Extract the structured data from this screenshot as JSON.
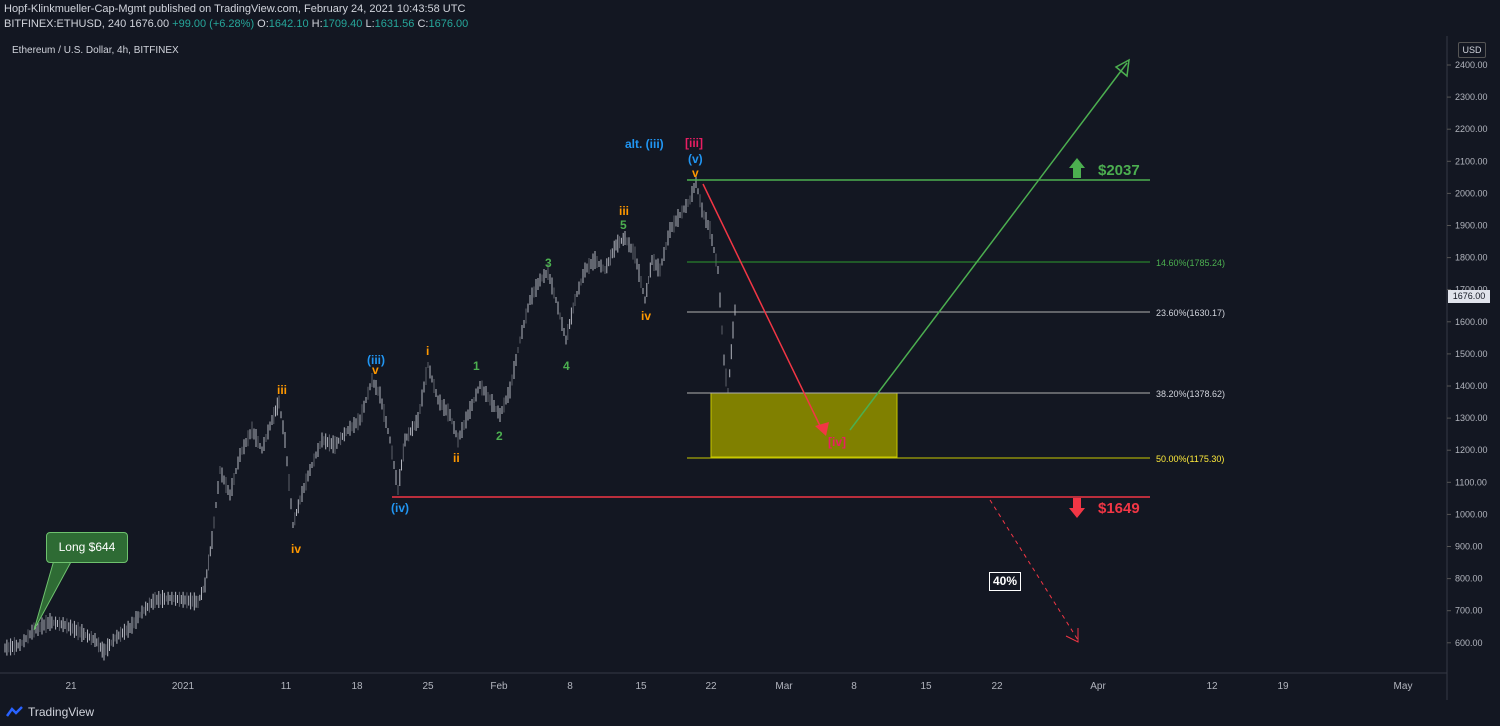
{
  "header": {
    "line1": "Hopf-Klinkmueller-Cap-Mgmt published on TradingView.com, February 24, 2021 10:43:58 UTC",
    "symbol": "BITFINEX:ETHUSD, 240",
    "last": "1676.00",
    "change": "+99.00 (+6.28%)",
    "o_label": "O:",
    "o": "1642.10",
    "h_label": "H:",
    "h": "1709.40",
    "l_label": "L:",
    "l": "1631.56",
    "c_label": "C:",
    "c": "1676.00"
  },
  "chart_title": "Ethereum / U.S. Dollar, 4h, BITFINEX",
  "currency_button": "USD",
  "current_price_tag": "1676.00",
  "price_axis": [
    "2400.00",
    "2300.00",
    "2200.00",
    "2100.00",
    "2000.00",
    "1900.00",
    "1800.00",
    "1700.00",
    "1600.00",
    "1500.00",
    "1400.00",
    "1300.00",
    "1200.00",
    "1100.00",
    "1000.00",
    "900.00",
    "800.00",
    "700.00",
    "600.00"
  ],
  "time_axis": [
    "21",
    "2021",
    "11",
    "18",
    "25",
    "Feb",
    "8",
    "15",
    "22",
    "Mar",
    "8",
    "15",
    "22",
    "Apr",
    "12",
    "19",
    "May"
  ],
  "annotations": {
    "long": "Long $644",
    "target_up": "$2037",
    "target_down": "$1649",
    "risk_pct": "40%",
    "fib_1": "14.60%(1785.24)",
    "fib_2": "23.60%(1630.17)",
    "fib_3": "38.20%(1378.62)",
    "fib_4": "50.00%(1175.30)",
    "wave_labels": {
      "iii_a": "iii",
      "iv_a": "iv",
      "iii_blue": "(iii)",
      "v_a": "v",
      "iv_blue": "(iv)",
      "i_a": "i",
      "ii_a": "ii",
      "one": "1",
      "two": "2",
      "three": "3",
      "four": "4",
      "five": "5",
      "iii_b": "iii",
      "iv_b": "iv",
      "alt_iii": "alt. (iii)",
      "iii_red": "[iii]",
      "v_blue": "(v)",
      "v_b": "v",
      "iv_red": "[iv]"
    }
  },
  "footer": {
    "brand": "TradingView"
  },
  "colors": {
    "bg": "#131722",
    "green": "#4caf50",
    "red": "#f23645",
    "orange": "#ff9800",
    "blue": "#2196f3",
    "yellow": "#ffeb3b"
  }
}
